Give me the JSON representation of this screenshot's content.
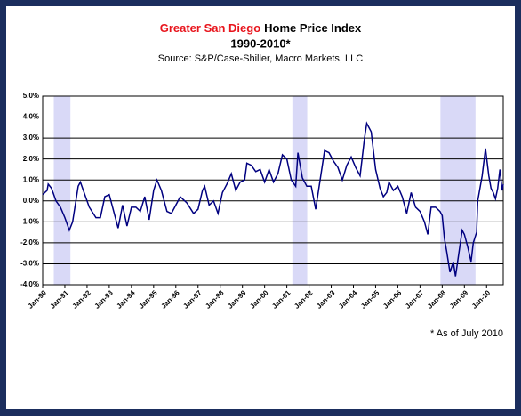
{
  "chart_data": {
    "type": "line",
    "title_highlight": "Greater San Diego",
    "title": "Home Price Index",
    "subtitle": "1990-2010*",
    "source": "Source: S&P/Case-Shiller, Macro Markets, LLC",
    "footnote": "* As of July 2010",
    "line_color": "#000080",
    "shade_color": "#d9d9f7",
    "shaded_periods": [
      [
        1990.5,
        1991.25
      ],
      [
        2001.25,
        2001.92
      ],
      [
        2007.92,
        2009.5
      ]
    ],
    "x": [
      1990.0,
      1990.2,
      1990.25,
      1990.4,
      1990.6,
      1990.8,
      1991.0,
      1991.2,
      1991.35,
      1991.6,
      1991.7,
      1991.9,
      1992.1,
      1992.4,
      1992.6,
      1992.8,
      1993.0,
      1993.2,
      1993.4,
      1993.6,
      1993.8,
      1994.0,
      1994.2,
      1994.4,
      1994.6,
      1994.8,
      1995.0,
      1995.15,
      1995.35,
      1995.6,
      1995.8,
      1996.0,
      1996.2,
      1996.5,
      1996.8,
      1997.0,
      1997.2,
      1997.3,
      1997.5,
      1997.7,
      1997.9,
      1998.1,
      1998.3,
      1998.5,
      1998.7,
      1998.9,
      1999.1,
      1999.2,
      1999.4,
      1999.6,
      1999.8,
      2000.0,
      2000.2,
      2000.4,
      2000.6,
      2000.8,
      2001.0,
      2001.2,
      2001.4,
      2001.5,
      2001.7,
      2001.9,
      2002.1,
      2002.3,
      2002.5,
      2002.7,
      2002.9,
      2003.1,
      2003.3,
      2003.5,
      2003.7,
      2003.9,
      2004.1,
      2004.3,
      2004.5,
      2004.6,
      2004.8,
      2005.0,
      2005.2,
      2005.35,
      2005.5,
      2005.6,
      2005.8,
      2006.0,
      2006.2,
      2006.4,
      2006.6,
      2006.8,
      2007.0,
      2007.2,
      2007.35,
      2007.5,
      2007.7,
      2007.9,
      2008.0,
      2008.1,
      2008.2,
      2008.35,
      2008.5,
      2008.6,
      2008.75,
      2008.9,
      2009.0,
      2009.15,
      2009.3,
      2009.4,
      2009.55,
      2009.6,
      2009.8,
      2009.95,
      2010.1,
      2010.2,
      2010.3,
      2010.4,
      2010.5,
      2010.6,
      2010.7,
      2010.75
    ],
    "values": [
      0.3,
      0.5,
      0.8,
      0.6,
      0.0,
      -0.3,
      -0.8,
      -1.4,
      -1.0,
      0.7,
      0.9,
      0.3,
      -0.3,
      -0.8,
      -0.8,
      0.2,
      0.3,
      -0.5,
      -1.3,
      -0.2,
      -1.2,
      -0.3,
      -0.3,
      -0.5,
      0.2,
      -0.9,
      0.5,
      1.0,
      0.5,
      -0.5,
      -0.6,
      -0.2,
      0.2,
      -0.1,
      -0.6,
      -0.4,
      0.5,
      0.7,
      -0.2,
      0.0,
      -0.6,
      0.4,
      0.8,
      1.3,
      0.5,
      0.9,
      1.0,
      1.8,
      1.7,
      1.4,
      1.5,
      0.9,
      1.5,
      0.9,
      1.3,
      2.2,
      2.0,
      1.0,
      0.7,
      2.3,
      1.1,
      0.7,
      0.7,
      -0.4,
      1.0,
      2.4,
      2.3,
      1.9,
      1.6,
      1.0,
      1.7,
      2.1,
      1.6,
      1.2,
      3.0,
      3.7,
      3.3,
      1.5,
      0.6,
      0.2,
      0.4,
      0.9,
      0.5,
      0.7,
      0.2,
      -0.6,
      0.4,
      -0.3,
      -0.5,
      -1.0,
      -1.6,
      -0.3,
      -0.3,
      -0.5,
      -0.7,
      -1.8,
      -2.4,
      -3.4,
      -2.9,
      -3.6,
      -2.5,
      -1.4,
      -1.6,
      -2.2,
      -2.9,
      -2.0,
      -1.5,
      0.0,
      1.2,
      2.5,
      1.2,
      0.6,
      0.4,
      0.1,
      0.6,
      1.5,
      0.5,
      0.8
    ],
    "xlim": [
      1990,
      2010.75
    ],
    "xticks": [
      {
        "value": 1990,
        "label": "Jan-90"
      },
      {
        "value": 1991,
        "label": "Jan-91"
      },
      {
        "value": 1992,
        "label": "Jan-92"
      },
      {
        "value": 1993,
        "label": "Jan-93"
      },
      {
        "value": 1994,
        "label": "Jan-94"
      },
      {
        "value": 1995,
        "label": "Jan-95"
      },
      {
        "value": 1996,
        "label": "Jan-96"
      },
      {
        "value": 1997,
        "label": "Jan-97"
      },
      {
        "value": 1998,
        "label": "Jan-98"
      },
      {
        "value": 1999,
        "label": "Jan-99"
      },
      {
        "value": 2000,
        "label": "Jan-00"
      },
      {
        "value": 2001,
        "label": "Jan-01"
      },
      {
        "value": 2002,
        "label": "Jan-02"
      },
      {
        "value": 2003,
        "label": "Jan-03"
      },
      {
        "value": 2004,
        "label": "Jan-04"
      },
      {
        "value": 2005,
        "label": "Jan-05"
      },
      {
        "value": 2006,
        "label": "Jan-06"
      },
      {
        "value": 2007,
        "label": "Jan-07"
      },
      {
        "value": 2008,
        "label": "Jan-08"
      },
      {
        "value": 2009,
        "label": "Jan-09"
      },
      {
        "value": 2010,
        "label": "Jan-10"
      }
    ],
    "ylim": [
      -4,
      5
    ],
    "yticks": [
      {
        "value": -4,
        "label": "-4.0%"
      },
      {
        "value": -3,
        "label": "-3.0%"
      },
      {
        "value": -2,
        "label": "-2.0%"
      },
      {
        "value": -1,
        "label": "-1.0%"
      },
      {
        "value": 0,
        "label": "0.0%"
      },
      {
        "value": 1,
        "label": "1.0%"
      },
      {
        "value": 2,
        "label": "2.0%"
      },
      {
        "value": 3,
        "label": "3.0%"
      },
      {
        "value": 4,
        "label": "4.0%"
      },
      {
        "value": 5,
        "label": "5.0%"
      }
    ],
    "grid": true
  }
}
